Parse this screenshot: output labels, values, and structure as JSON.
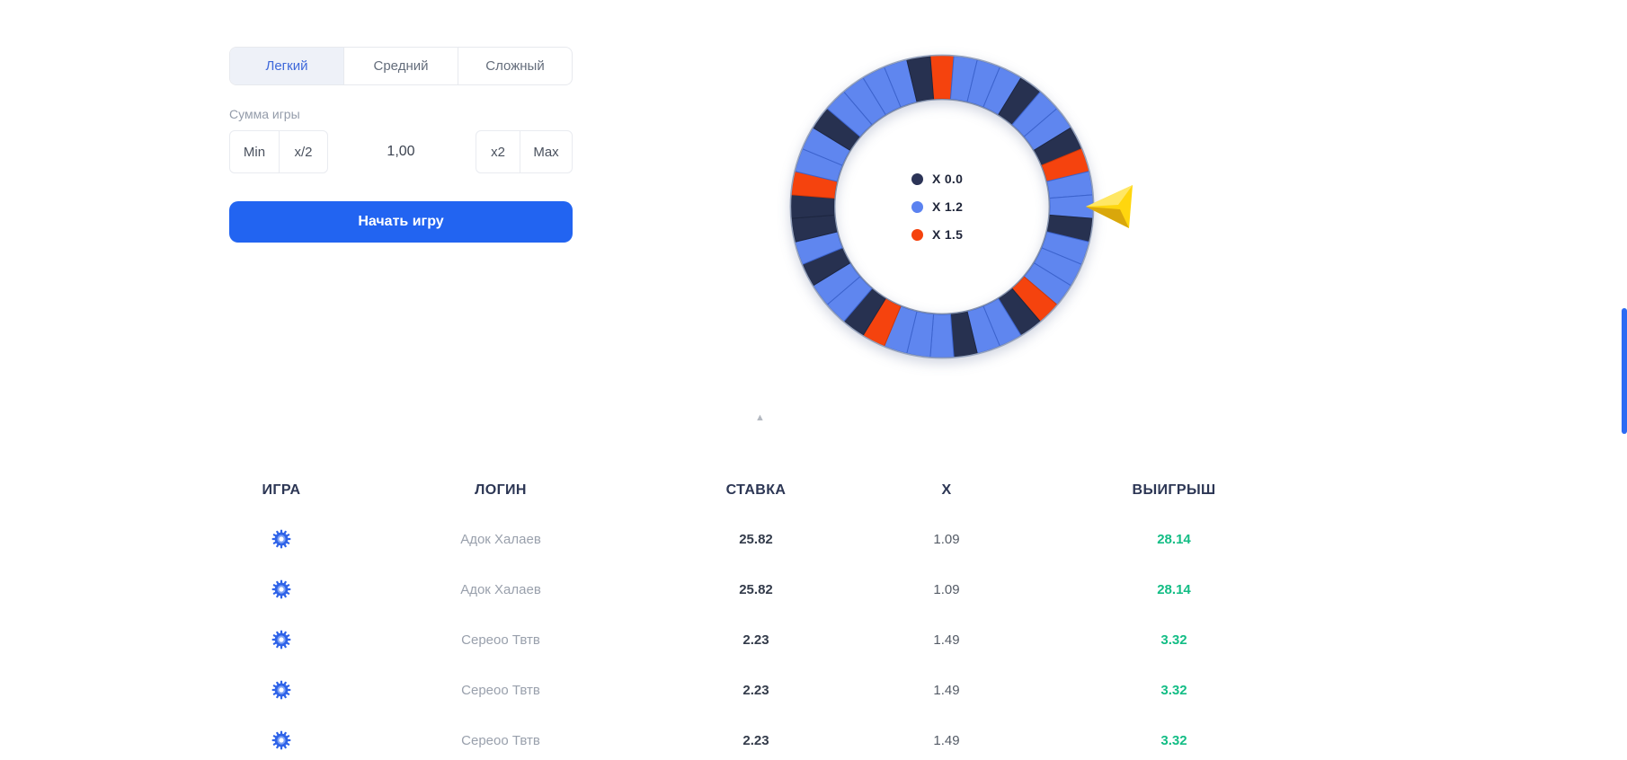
{
  "app": {
    "accent_color": "#2264f1",
    "scrollbar_color": "#2c6bf3",
    "scroll_hint_icon": "▲"
  },
  "difficulty_tabs": [
    {
      "label": "Легкий",
      "active": true
    },
    {
      "label": "Средний",
      "active": false
    },
    {
      "label": "Сложный",
      "active": false
    }
  ],
  "bet_panel": {
    "amount_label": "Сумма игры",
    "min_label": "Min",
    "half_label": "x/2",
    "amount_value": "1,00",
    "double_label": "x2",
    "max_label": "Max",
    "start_button_label": "Начать игру"
  },
  "wheel": {
    "legend": [
      {
        "label": "X 0.0",
        "color": "#2c3457"
      },
      {
        "label": "X 1.2",
        "color": "#5b82f0"
      },
      {
        "label": "X 1.5",
        "color": "#f5420d"
      }
    ],
    "colors": {
      "blue": "#5f86ef",
      "navy": "#273150",
      "orange": "#f5430e",
      "blue_stroke": "#3c63cd",
      "navy_stroke": "#1d2640",
      "orange_stroke": "#d23607",
      "rim_outer": "#96a3bd",
      "rim_inner": "#8290ac"
    },
    "pointer_colors": {
      "main": "#ffd60e",
      "shade": "#d9a70b",
      "light": "#ffe765"
    },
    "segments": [
      "orange",
      "blue",
      "blue",
      "blue",
      "navy",
      "blue",
      "blue",
      "navy",
      "orange",
      "blue",
      "blue",
      "navy",
      "blue",
      "blue",
      "blue",
      "orange",
      "navy",
      "blue",
      "blue",
      "navy",
      "blue",
      "blue",
      "blue",
      "orange",
      "navy",
      "blue",
      "blue",
      "navy",
      "blue",
      "navy",
      "navy",
      "orange",
      "blue",
      "blue",
      "navy",
      "blue",
      "blue",
      "blue",
      "blue",
      "navy"
    ]
  },
  "history_table": {
    "columns": [
      "ИГРА",
      "ЛОГИН",
      "СТАВКА",
      "X",
      "ВЫИГРЫШ"
    ],
    "win_color": "#13bd85",
    "game_icon_color": "#2f63e8",
    "rows": [
      {
        "login": "Адок Халаев",
        "bet": "25.82",
        "multiplier": "1.09",
        "win": "28.14"
      },
      {
        "login": "Адок Халаев",
        "bet": "25.82",
        "multiplier": "1.09",
        "win": "28.14"
      },
      {
        "login": "Сереоо Твтв",
        "bet": "2.23",
        "multiplier": "1.49",
        "win": "3.32"
      },
      {
        "login": "Сереоо Твтв",
        "bet": "2.23",
        "multiplier": "1.49",
        "win": "3.32"
      },
      {
        "login": "Сереоо Твтв",
        "bet": "2.23",
        "multiplier": "1.49",
        "win": "3.32"
      }
    ]
  }
}
